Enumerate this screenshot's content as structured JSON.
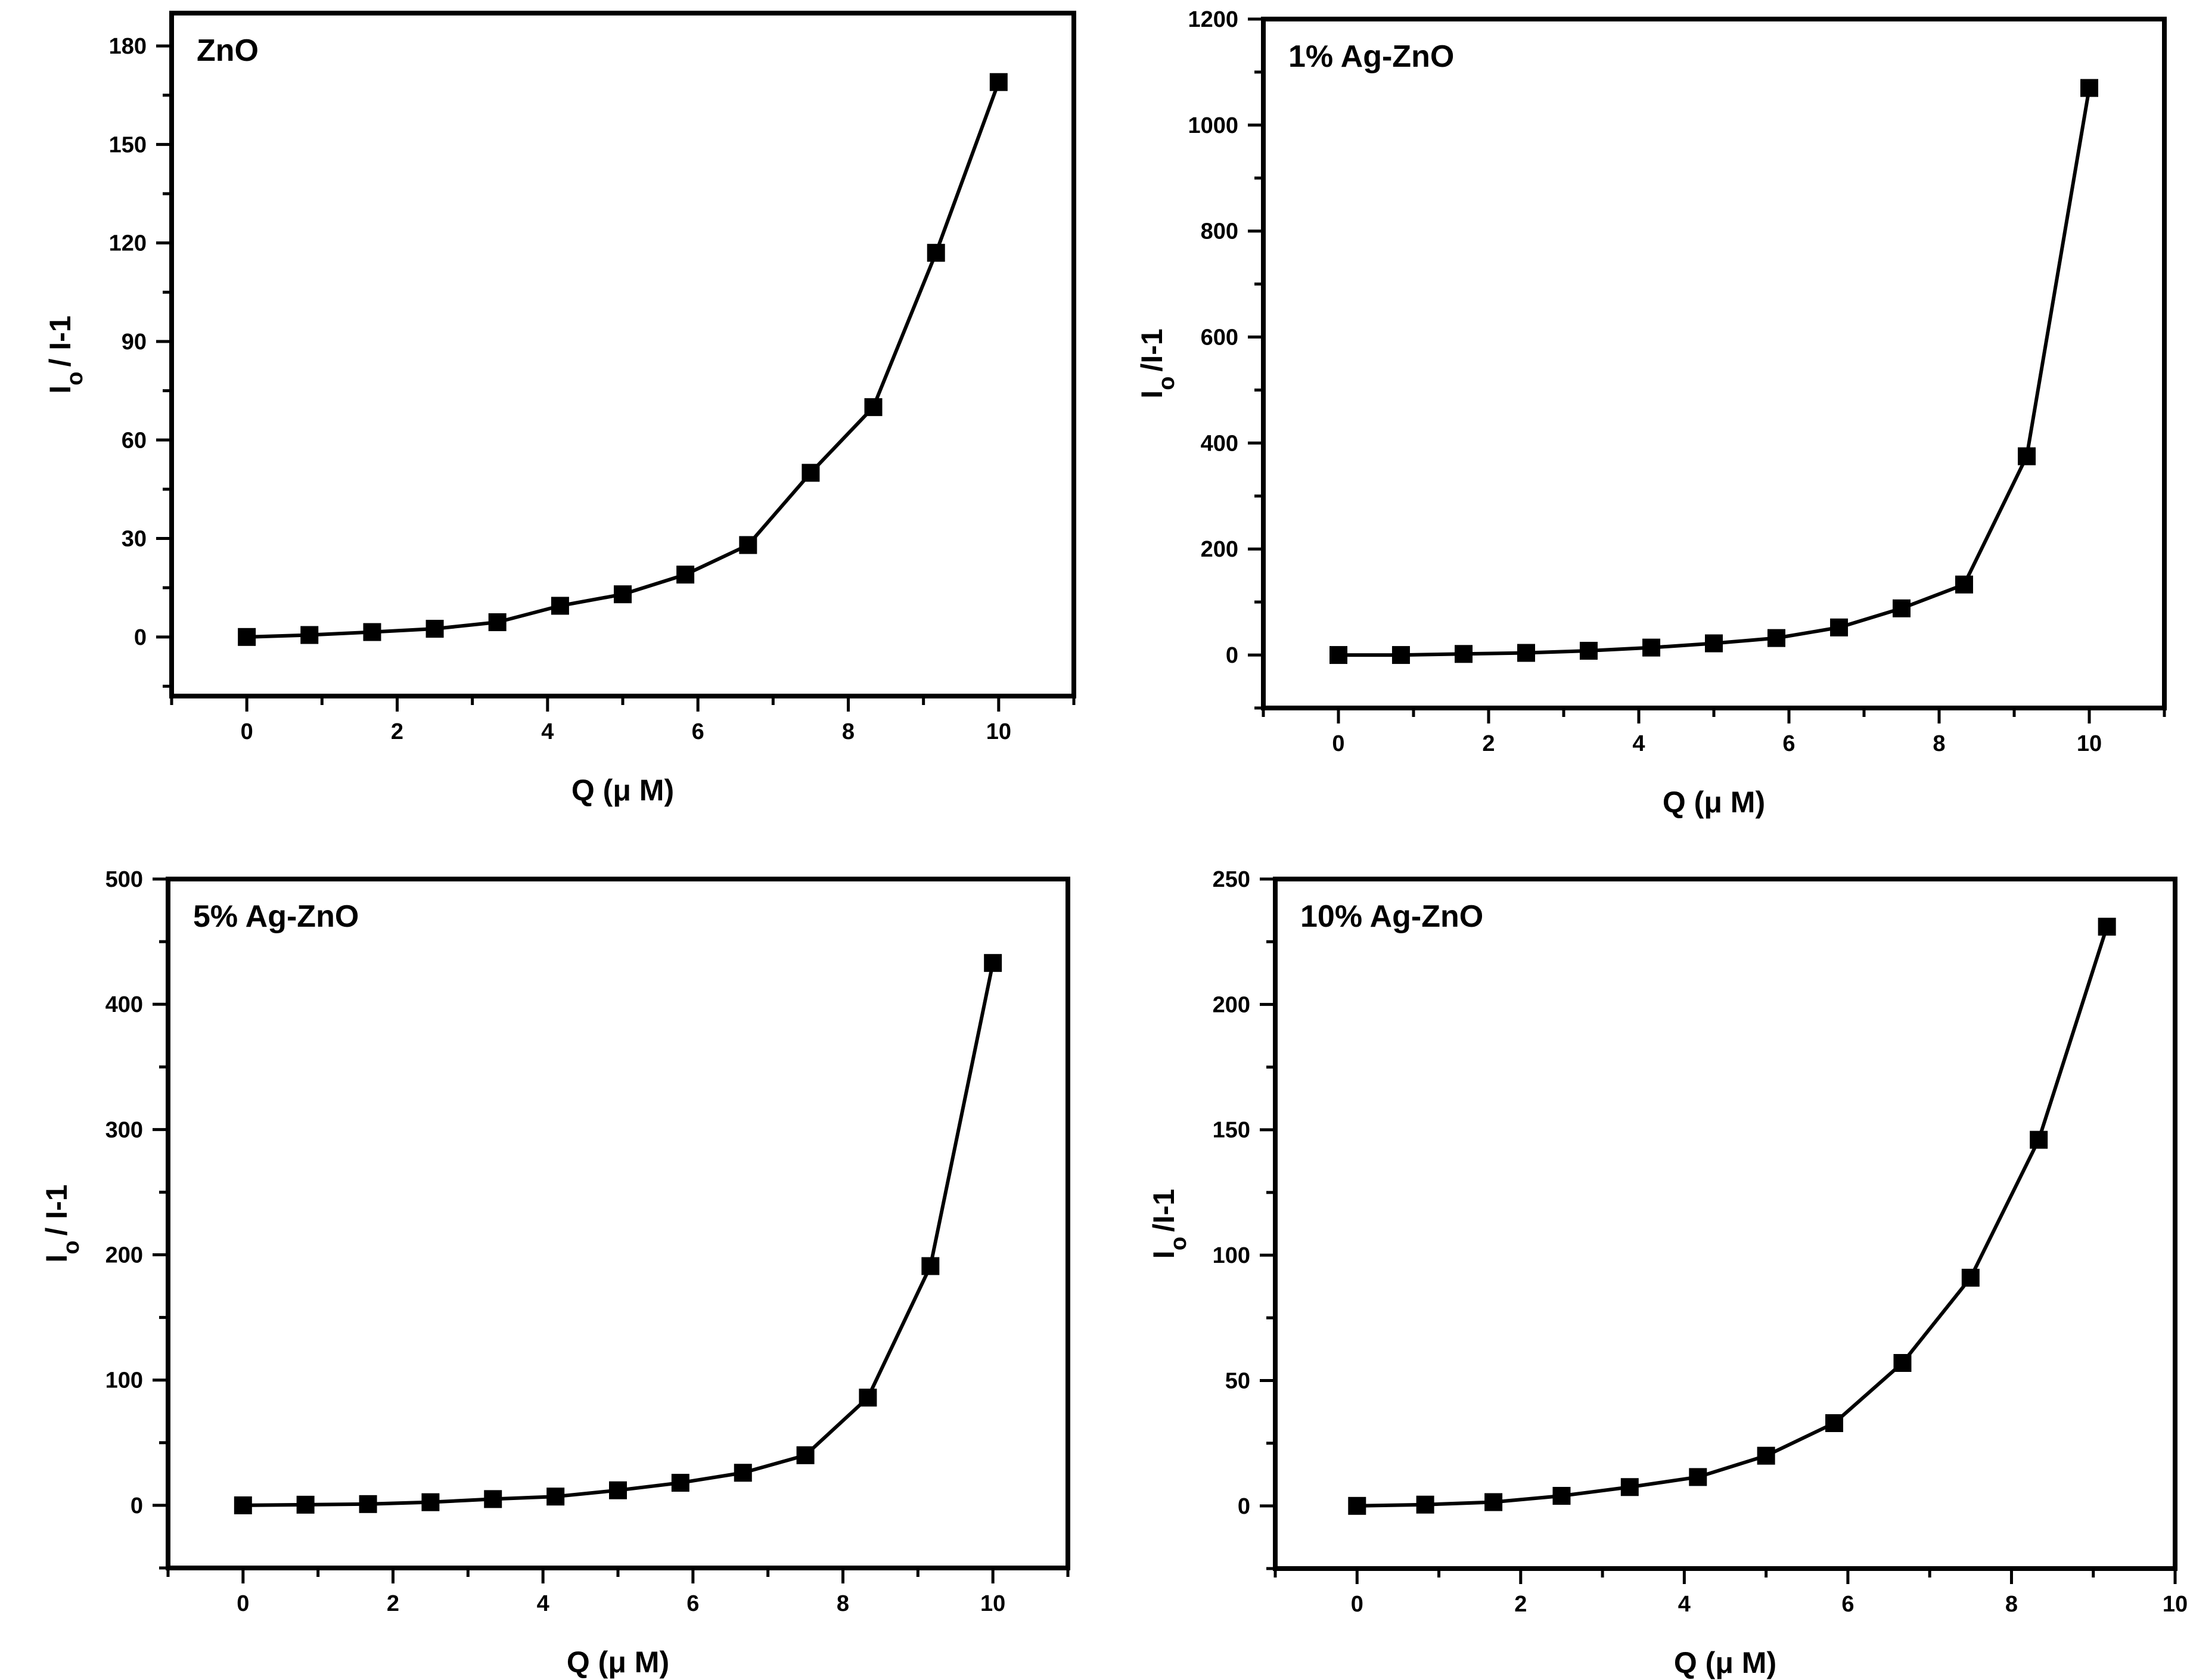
{
  "figure": {
    "x_axis_label": "Q (μ M)",
    "y_axis_label_main": "I",
    "y_axis_label_sub": "o",
    "y_axis_label_tail": "/ I-1",
    "y_axis_label_tail_alt": "/I-1"
  },
  "chart_data": [
    {
      "type": "line",
      "title": "ZnO",
      "xlabel": "Q (μ M)",
      "ylabel": "Io / I-1",
      "xlim": [
        -1,
        11
      ],
      "ylim": [
        -18,
        190
      ],
      "xticks": [
        0,
        2,
        4,
        6,
        8,
        10
      ],
      "yticks": [
        0,
        30,
        60,
        90,
        120,
        150,
        180
      ],
      "series": [
        {
          "name": "ZnO",
          "marker": "square",
          "x": [
            0,
            0.833,
            1.667,
            2.5,
            3.333,
            4.167,
            5.0,
            5.833,
            6.667,
            7.5,
            8.333,
            9.167,
            10.0
          ],
          "y": [
            0,
            0.6,
            1.5,
            2.5,
            4.5,
            9.5,
            13,
            19,
            28,
            50,
            70,
            117,
            169
          ]
        }
      ]
    },
    {
      "type": "line",
      "title": "1% Ag-ZnO",
      "xlabel": "Q (μ M)",
      "ylabel": "Io /I-1",
      "xlim": [
        -1,
        11
      ],
      "ylim": [
        -100,
        1200
      ],
      "xticks": [
        0,
        2,
        4,
        6,
        8,
        10
      ],
      "yticks": [
        0,
        200,
        400,
        600,
        800,
        1000,
        1200
      ],
      "series": [
        {
          "name": "1% Ag-ZnO",
          "marker": "square",
          "x": [
            0,
            0.833,
            1.667,
            2.5,
            3.333,
            4.167,
            5.0,
            5.833,
            6.667,
            7.5,
            8.333,
            9.167,
            10.0
          ],
          "y": [
            0,
            0,
            2,
            4,
            8,
            14,
            22,
            32,
            52,
            88,
            133,
            375,
            1070
          ]
        }
      ]
    },
    {
      "type": "line",
      "title": "5% Ag-ZnO",
      "xlabel": "Q (μ M)",
      "ylabel": "Io / I-1",
      "xlim": [
        -1,
        11
      ],
      "ylim": [
        -50,
        500
      ],
      "xticks": [
        0,
        2,
        4,
        6,
        8,
        10
      ],
      "yticks": [
        0,
        100,
        200,
        300,
        400,
        500
      ],
      "series": [
        {
          "name": "5% Ag-ZnO",
          "marker": "square",
          "x": [
            0,
            0.833,
            1.667,
            2.5,
            3.333,
            4.167,
            5.0,
            5.833,
            6.667,
            7.5,
            8.333,
            9.167,
            10.0
          ],
          "y": [
            0,
            0.5,
            1,
            2.5,
            5,
            7,
            12,
            18,
            26,
            40,
            86,
            191,
            433
          ]
        }
      ]
    },
    {
      "type": "line",
      "title": "10% Ag-ZnO",
      "xlabel": "Q (μ M)",
      "ylabel": "Io /I-1",
      "xlim": [
        -1,
        10
      ],
      "ylim": [
        -25,
        250
      ],
      "xticks": [
        0,
        2,
        4,
        6,
        8,
        10
      ],
      "yticks": [
        0,
        50,
        100,
        150,
        200,
        250
      ],
      "series": [
        {
          "name": "10% Ag-ZnO",
          "marker": "square",
          "x": [
            0,
            0.833,
            1.667,
            2.5,
            3.333,
            4.167,
            5.0,
            5.833,
            6.667,
            7.5,
            8.333,
            9.167
          ],
          "y": [
            0,
            0.5,
            1.5,
            4,
            7.5,
            11.5,
            20,
            33,
            57,
            91,
            146,
            231
          ]
        }
      ]
    }
  ]
}
